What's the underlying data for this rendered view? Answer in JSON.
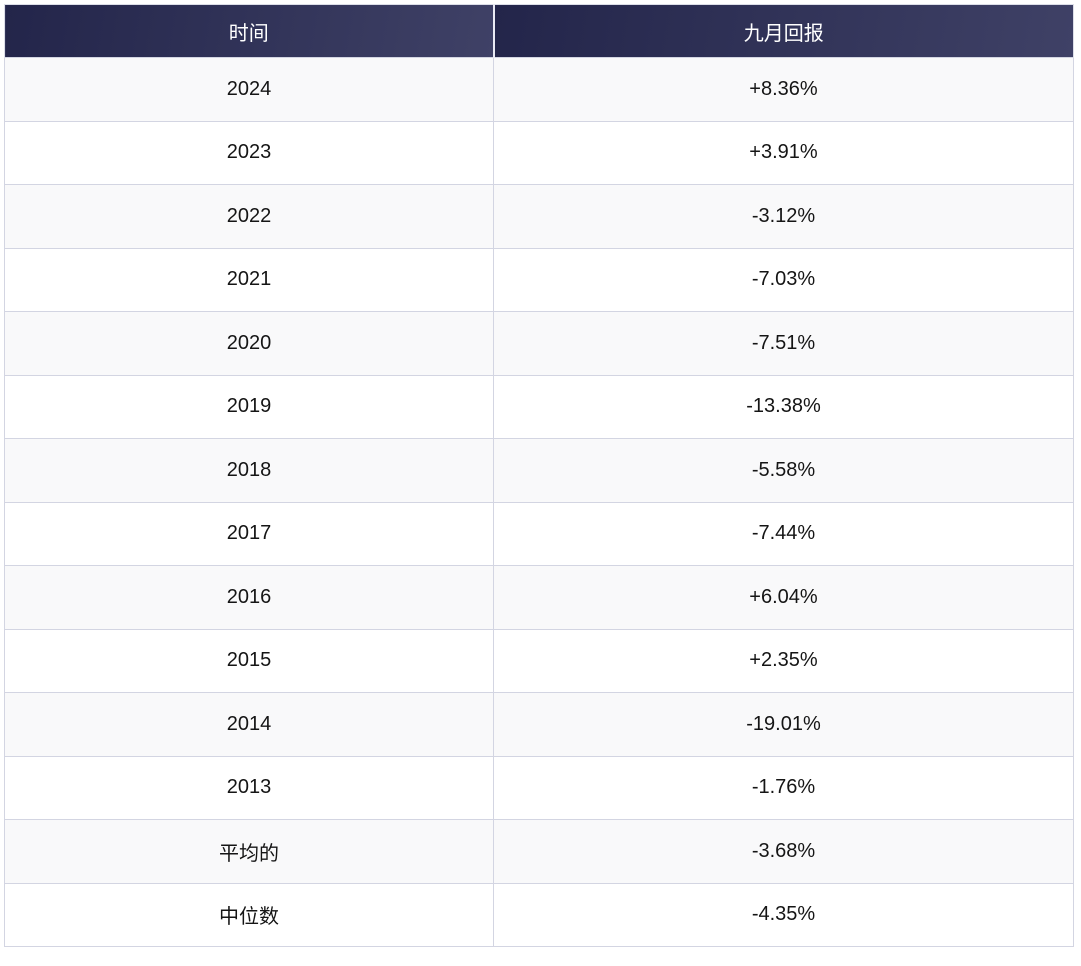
{
  "colors": {
    "header_gradient_start": "#23254a",
    "header_gradient_end": "#3f4166",
    "header_text": "#ffffff",
    "row_alt_background": "#f9f9fa",
    "row_background": "#ffffff",
    "border": "#d3d5e2",
    "body_text": "#151515"
  },
  "table": {
    "columns": [
      "时间",
      "九月回报"
    ],
    "rows": [
      {
        "period": "2024",
        "value": "+8.36%"
      },
      {
        "period": "2023",
        "value": "+3.91%"
      },
      {
        "period": "2022",
        "value": "-3.12%"
      },
      {
        "period": "2021",
        "value": "-7.03%"
      },
      {
        "period": "2020",
        "value": "-7.51%"
      },
      {
        "period": "2019",
        "value": "-13.38%"
      },
      {
        "period": "2018",
        "value": "-5.58%"
      },
      {
        "period": "2017",
        "value": "-7.44%"
      },
      {
        "period": "2016",
        "value": "+6.04%"
      },
      {
        "period": "2015",
        "value": "+2.35%"
      },
      {
        "period": "2014",
        "value": "-19.01%"
      },
      {
        "period": "2013",
        "value": "-1.76%"
      },
      {
        "period": "平均的",
        "value": "-3.68%"
      },
      {
        "period": "中位数",
        "value": "-4.35%"
      }
    ]
  },
  "chart_data": {
    "type": "table",
    "title": "",
    "columns": [
      "时间",
      "九月回报"
    ],
    "rows": [
      [
        "2024",
        "+8.36%"
      ],
      [
        "2023",
        "+3.91%"
      ],
      [
        "2022",
        "-3.12%"
      ],
      [
        "2021",
        "-7.03%"
      ],
      [
        "2020",
        "-7.51%"
      ],
      [
        "2019",
        "-13.38%"
      ],
      [
        "2018",
        "-5.58%"
      ],
      [
        "2017",
        "-7.44%"
      ],
      [
        "2016",
        "+6.04%"
      ],
      [
        "2015",
        "+2.35%"
      ],
      [
        "2014",
        "-19.01%"
      ],
      [
        "2013",
        "-1.76%"
      ],
      [
        "平均的",
        "-3.68%"
      ],
      [
        "中位数",
        "-4.35%"
      ]
    ],
    "values_numeric_percent": [
      8.36,
      3.91,
      -3.12,
      -7.03,
      -7.51,
      -13.38,
      -5.58,
      -7.44,
      6.04,
      2.35,
      -19.01,
      -1.76,
      -3.68,
      -4.35
    ]
  }
}
